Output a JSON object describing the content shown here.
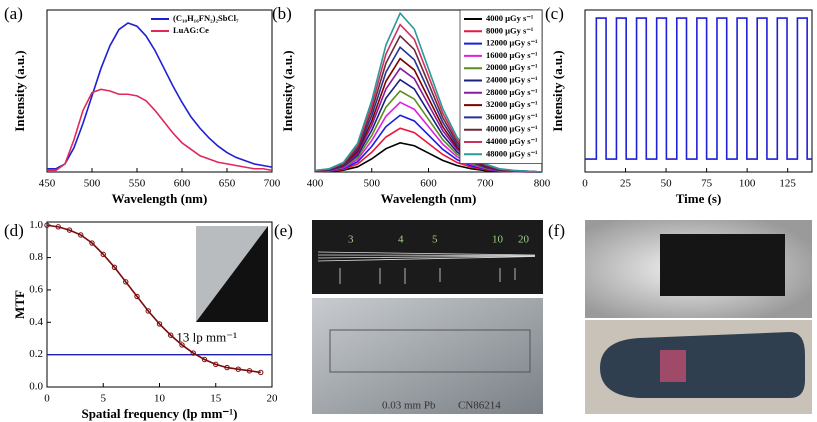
{
  "chart_data": [
    {
      "type": "line",
      "panel_label": "(a)",
      "xlabel": "Wavelength (nm)",
      "ylabel": "Intensity (a.u.)",
      "x": [
        450,
        460,
        470,
        480,
        490,
        500,
        510,
        520,
        530,
        540,
        550,
        560,
        570,
        580,
        590,
        600,
        610,
        620,
        630,
        640,
        650,
        660,
        670,
        680,
        690,
        700
      ],
      "series": [
        {
          "name": "(C₁₀H₁₆FN₂)₂SbCl₇",
          "color": "#1f1fd6",
          "values": [
            0.02,
            0.02,
            0.05,
            0.15,
            0.3,
            0.47,
            0.64,
            0.78,
            0.88,
            0.92,
            0.9,
            0.84,
            0.75,
            0.64,
            0.53,
            0.43,
            0.34,
            0.27,
            0.21,
            0.16,
            0.12,
            0.09,
            0.07,
            0.05,
            0.04,
            0.03
          ]
        },
        {
          "name": "LuAG:Ce",
          "color": "#e0285a",
          "values": [
            0.01,
            0.01,
            0.05,
            0.2,
            0.38,
            0.49,
            0.51,
            0.5,
            0.48,
            0.48,
            0.47,
            0.44,
            0.38,
            0.31,
            0.24,
            0.18,
            0.14,
            0.1,
            0.08,
            0.06,
            0.05,
            0.04,
            0.03,
            0.02,
            0.02,
            0.01
          ]
        }
      ],
      "xlim": [
        450,
        700
      ],
      "xticks": [
        450,
        500,
        550,
        600,
        650,
        700
      ],
      "ylim": [
        0,
        1
      ],
      "legend": "upper right"
    },
    {
      "type": "line",
      "panel_label": "(b)",
      "xlabel": "Wavelength (nm)",
      "ylabel": "Intensity (a.u.)",
      "x": [
        400,
        425,
        450,
        475,
        500,
        525,
        550,
        575,
        600,
        625,
        650,
        675,
        700,
        725,
        750,
        775,
        800
      ],
      "series": [
        {
          "name": "4000 µGy s⁻¹",
          "color": "#000000",
          "values": [
            0.002,
            0.004,
            0.011,
            0.032,
            0.081,
            0.144,
            0.18,
            0.162,
            0.117,
            0.072,
            0.04,
            0.02,
            0.009,
            0.004,
            0.002,
            0.001,
            0
          ]
        },
        {
          "name": "8000 µGy s⁻¹",
          "color": "#e8173f",
          "values": [
            0.003,
            0.005,
            0.016,
            0.049,
            0.122,
            0.216,
            0.27,
            0.243,
            0.176,
            0.108,
            0.059,
            0.03,
            0.014,
            0.005,
            0.003,
            0.001,
            0
          ]
        },
        {
          "name": "12000 µGy s⁻¹",
          "color": "#1c1ce0",
          "values": [
            0.004,
            0.007,
            0.021,
            0.063,
            0.158,
            0.28,
            0.35,
            0.315,
            0.228,
            0.14,
            0.077,
            0.039,
            0.018,
            0.007,
            0.004,
            0.002,
            0
          ]
        },
        {
          "name": "16000 µGy s⁻¹",
          "color": "#e020e0",
          "values": [
            0.004,
            0.009,
            0.026,
            0.077,
            0.194,
            0.344,
            0.43,
            0.387,
            0.28,
            0.172,
            0.095,
            0.047,
            0.022,
            0.009,
            0.004,
            0.002,
            0
          ]
        },
        {
          "name": "20000 µGy s⁻¹",
          "color": "#5a8f1a",
          "values": [
            0.005,
            0.01,
            0.03,
            0.09,
            0.225,
            0.4,
            0.5,
            0.45,
            0.325,
            0.2,
            0.11,
            0.055,
            0.025,
            0.01,
            0.005,
            0.003,
            0
          ]
        },
        {
          "name": "24000 µGy s⁻¹",
          "color": "#1a2080",
          "values": [
            0.006,
            0.011,
            0.034,
            0.103,
            0.257,
            0.456,
            0.57,
            0.513,
            0.371,
            0.228,
            0.125,
            0.063,
            0.029,
            0.011,
            0.006,
            0.003,
            0
          ]
        },
        {
          "name": "28000 µGy s⁻¹",
          "color": "#8a1aa0",
          "values": [
            0.006,
            0.013,
            0.038,
            0.115,
            0.288,
            0.512,
            0.64,
            0.576,
            0.416,
            0.256,
            0.141,
            0.07,
            0.032,
            0.013,
            0.006,
            0.003,
            0
          ]
        },
        {
          "name": "32000 µGy s⁻¹",
          "color": "#800000",
          "values": [
            0.007,
            0.014,
            0.042,
            0.126,
            0.315,
            0.56,
            0.7,
            0.63,
            0.455,
            0.28,
            0.154,
            0.077,
            0.035,
            0.014,
            0.007,
            0.004,
            0
          ]
        },
        {
          "name": "36000 µGy s⁻¹",
          "color": "#2a3490",
          "values": [
            0.008,
            0.015,
            0.046,
            0.139,
            0.347,
            0.616,
            0.77,
            0.693,
            0.501,
            0.308,
            0.169,
            0.085,
            0.039,
            0.015,
            0.008,
            0.004,
            0
          ]
        },
        {
          "name": "40000 µGy s⁻¹",
          "color": "#6a2a3a",
          "values": [
            0.008,
            0.017,
            0.05,
            0.151,
            0.378,
            0.672,
            0.84,
            0.756,
            0.546,
            0.336,
            0.185,
            0.092,
            0.042,
            0.017,
            0.008,
            0.004,
            0
          ]
        },
        {
          "name": "44000 µGy s⁻¹",
          "color": "#d03060",
          "values": [
            0.009,
            0.018,
            0.055,
            0.164,
            0.41,
            0.728,
            0.91,
            0.819,
            0.592,
            0.364,
            0.2,
            0.1,
            0.046,
            0.018,
            0.009,
            0.005,
            0
          ]
        },
        {
          "name": "48000 µGy s⁻¹",
          "color": "#2a9a9a",
          "values": [
            0.01,
            0.02,
            0.059,
            0.176,
            0.441,
            0.784,
            0.98,
            0.882,
            0.637,
            0.392,
            0.216,
            0.108,
            0.049,
            0.02,
            0.01,
            0.005,
            0
          ]
        }
      ],
      "xlim": [
        400,
        800
      ],
      "xticks": [
        400,
        500,
        600,
        700,
        800
      ],
      "ylim": [
        0,
        1
      ],
      "legend": "upper right"
    },
    {
      "type": "line",
      "panel_label": "(c)",
      "xlabel": "Time (s)",
      "ylabel": "Intensity (a.u.)",
      "x": [
        0,
        7,
        7,
        13,
        13,
        19.4,
        19.4,
        25.4,
        25.4,
        31.8,
        31.8,
        37.8,
        37.8,
        44.2,
        44.2,
        50.2,
        50.2,
        56.6,
        56.6,
        62.6,
        62.6,
        69,
        69,
        75,
        75,
        81.4,
        81.4,
        87.4,
        87.4,
        93.8,
        93.8,
        99.8,
        99.8,
        106.2,
        106.2,
        112.2,
        112.2,
        118.6,
        118.6,
        124.6,
        124.6,
        131,
        131,
        137,
        137,
        140
      ],
      "values": [
        0.08,
        0.08,
        0.95,
        0.95,
        0.08,
        0.08,
        0.95,
        0.95,
        0.08,
        0.08,
        0.95,
        0.95,
        0.08,
        0.08,
        0.95,
        0.95,
        0.08,
        0.08,
        0.95,
        0.95,
        0.08,
        0.08,
        0.95,
        0.95,
        0.08,
        0.08,
        0.95,
        0.95,
        0.08,
        0.08,
        0.95,
        0.95,
        0.08,
        0.08,
        0.95,
        0.95,
        0.08,
        0.08,
        0.95,
        0.95,
        0.08,
        0.08,
        0.95,
        0.95,
        0.08,
        0.08
      ],
      "color": "#1f1fd6",
      "xlim": [
        0,
        140
      ],
      "xticks": [
        0,
        25,
        50,
        75,
        100,
        125
      ],
      "ylim": [
        0,
        1
      ]
    },
    {
      "type": "line",
      "panel_label": "(d)",
      "xlabel": "Spatial frequency (lp mm⁻¹)",
      "ylabel": "MTF",
      "x": [
        0,
        1,
        2,
        3,
        4,
        5,
        6,
        7,
        8,
        9,
        10,
        11,
        12,
        13,
        14,
        15,
        16,
        17,
        18,
        19
      ],
      "values": [
        1.0,
        0.99,
        0.97,
        0.94,
        0.89,
        0.82,
        0.74,
        0.65,
        0.56,
        0.47,
        0.39,
        0.32,
        0.26,
        0.21,
        0.17,
        0.14,
        0.12,
        0.11,
        0.1,
        0.09
      ],
      "color": "#7a0c0c",
      "marker": "circle",
      "hline": 0.2,
      "hline_color": "#1f1fb0",
      "annotation": "13 lp mm⁻¹",
      "xlim": [
        0,
        20
      ],
      "xticks": [
        0,
        5,
        10,
        15,
        20
      ],
      "ylim": [
        0,
        1.02
      ],
      "yticks": [
        {
          "value": 0,
          "label": "0.0"
        },
        0.2,
        0.4,
        0.6,
        0.8,
        {
          "value": 1,
          "label": "1.0"
        }
      ]
    }
  ],
  "photos": [
    {
      "panel_label": "(e)",
      "texts": [
        "3",
        "4",
        "5",
        "10",
        "20"
      ],
      "plate_texts": [
        "0.03 mm Pb",
        "CN86214"
      ]
    },
    {
      "panel_label": "(f)"
    }
  ]
}
